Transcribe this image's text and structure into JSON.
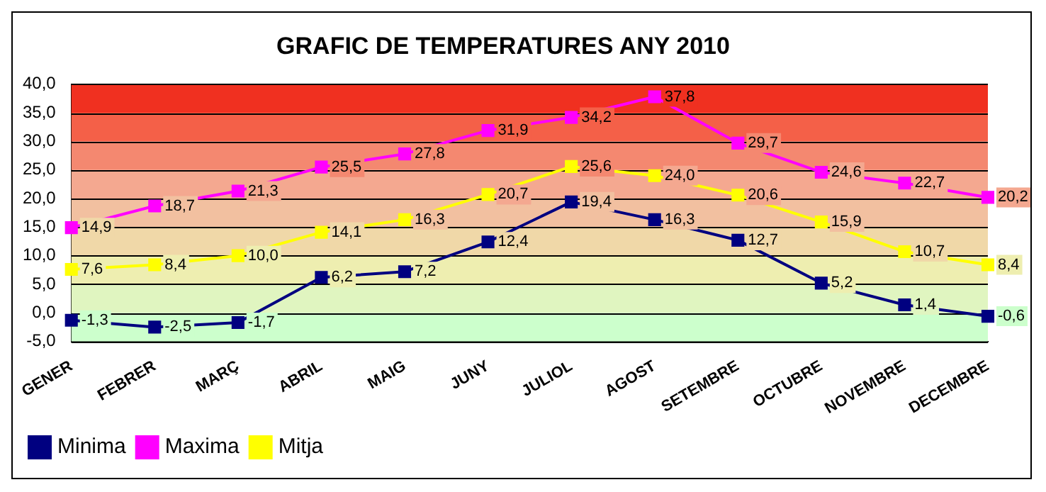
{
  "chart_data": {
    "type": "line",
    "title": "GRAFIC DE TEMPERATURES ANY 2010",
    "categories": [
      "GENER",
      "FEBRER",
      "MARÇ",
      "ABRIL",
      "MAIG",
      "JUNY",
      "JULIOL",
      "AGOST",
      "SETEMBRE",
      "OCTUBRE",
      "NOVEMBRE",
      "DECEMBRE"
    ],
    "series": [
      {
        "name": "Minima",
        "color": "#000080",
        "values": [
          -1.3,
          -2.5,
          -1.7,
          6.2,
          7.2,
          12.4,
          19.4,
          16.3,
          12.7,
          5.2,
          1.4,
          -0.6
        ],
        "value_labels": [
          "-1,3",
          "-2,5",
          "-1,7",
          "6,2",
          "7,2",
          "12,4",
          "19,4",
          "16,3",
          "12,7",
          "5,2",
          "1,4",
          "-0,6"
        ]
      },
      {
        "name": "Maxima",
        "color": "#ff00ff",
        "values": [
          14.9,
          18.7,
          21.3,
          25.5,
          27.8,
          31.9,
          34.2,
          37.8,
          29.7,
          24.6,
          22.7,
          20.2
        ],
        "value_labels": [
          "14,9",
          "18,7",
          "21,3",
          "25,5",
          "27,8",
          "31,9",
          "34,2",
          "37,8",
          "29,7",
          "24,6",
          "22,7",
          "20,2"
        ]
      },
      {
        "name": "Mitja",
        "color": "#ffff00",
        "values": [
          7.6,
          8.4,
          10.0,
          14.1,
          16.3,
          20.7,
          25.6,
          24.0,
          20.6,
          15.9,
          10.7,
          8.4
        ],
        "value_labels": [
          "7,6",
          "8,4",
          "10,0",
          "14,1",
          "16,3",
          "20,7",
          "25,6",
          "24,0",
          "20,6",
          "15,9",
          "10,7",
          "8,4"
        ]
      }
    ],
    "ylim": [
      -5,
      40
    ],
    "yticks": [
      {
        "value": -5,
        "label": "-5,0"
      },
      {
        "value": 0,
        "label": "0,0"
      },
      {
        "value": 5,
        "label": "5,0"
      },
      {
        "value": 10,
        "label": "10,0"
      },
      {
        "value": 15,
        "label": "15,0"
      },
      {
        "value": 20,
        "label": "20,0"
      },
      {
        "value": 25,
        "label": "25,0"
      },
      {
        "value": 30,
        "label": "30,0"
      },
      {
        "value": 35,
        "label": "35,0"
      },
      {
        "value": 40,
        "label": "40,0"
      }
    ],
    "bands": [
      {
        "axis": "y",
        "from": -5,
        "to": 0,
        "color": "#ccffcc"
      },
      {
        "axis": "y",
        "from": 0,
        "to": 5,
        "color": "#e0f5c0"
      },
      {
        "axis": "y",
        "from": 5,
        "to": 10,
        "color": "#eeeeb0"
      },
      {
        "axis": "y",
        "from": 10,
        "to": 15,
        "color": "#f0d8a8"
      },
      {
        "axis": "y",
        "from": 15,
        "to": 20,
        "color": "#f2c0a0"
      },
      {
        "axis": "y",
        "from": 20,
        "to": 25,
        "color": "#f4a890"
      },
      {
        "axis": "y",
        "from": 25,
        "to": 30,
        "color": "#f48870"
      },
      {
        "axis": "y",
        "from": 30,
        "to": 35,
        "color": "#f46048"
      },
      {
        "axis": "y",
        "from": 35,
        "to": 40,
        "color": "#f03020"
      }
    ],
    "grid": "y",
    "legend": "bottom left",
    "marker": "square",
    "line_style": "solid"
  }
}
